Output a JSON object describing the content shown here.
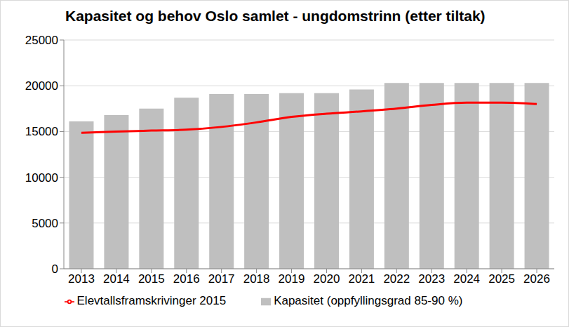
{
  "chart_data": {
    "type": "bar",
    "title": "Kapasitet og behov Oslo samlet - ungdomstrinn (etter tiltak)",
    "categories": [
      "2013",
      "2014",
      "2015",
      "2016",
      "2017",
      "2018",
      "2019",
      "2020",
      "2021",
      "2022",
      "2023",
      "2024",
      "2025",
      "2026"
    ],
    "series": [
      {
        "name": "Kapasitet (oppfyllingsgrad 85-90 %)",
        "type": "bar",
        "color": "#bfbfbf",
        "values": [
          16100,
          16800,
          17500,
          18700,
          19100,
          19100,
          19200,
          19200,
          19600,
          20300,
          20300,
          20300,
          20300,
          20300
        ]
      },
      {
        "name": "Elevtallsframskrivinger 2015",
        "type": "line",
        "color": "#ff0000",
        "values": [
          14850,
          15000,
          15100,
          15200,
          15500,
          16000,
          16600,
          16950,
          17200,
          17500,
          17900,
          18150,
          18150,
          18000
        ]
      }
    ],
    "ylim": [
      0,
      25000
    ],
    "yticks": [
      0,
      5000,
      10000,
      15000,
      20000,
      25000
    ],
    "grid": true,
    "legend": "bottom"
  }
}
